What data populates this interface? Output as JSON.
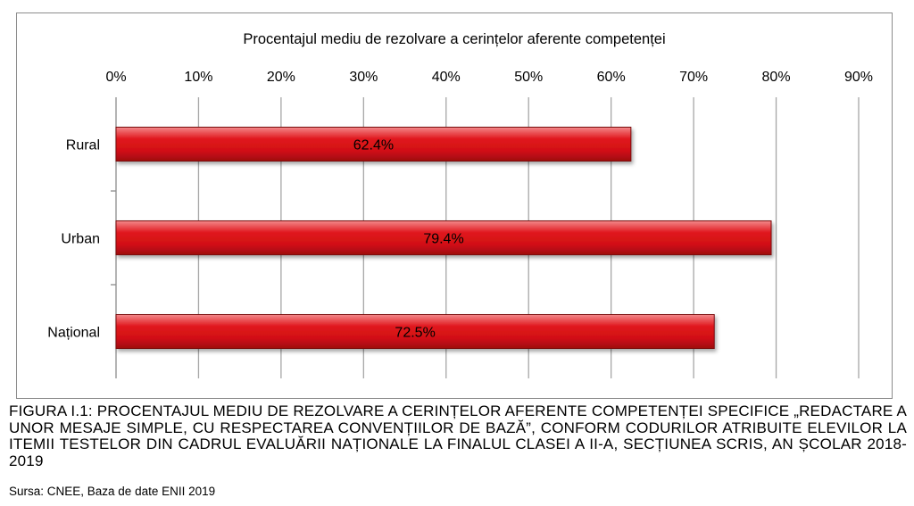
{
  "chart_data": {
    "type": "bar",
    "orientation": "horizontal",
    "title": "Procentajul mediu de rezolvare a cerințelor aferente competenței",
    "categories": [
      "Rural",
      "Urban",
      "Național"
    ],
    "values": [
      62.4,
      79.4,
      72.5
    ],
    "value_labels": [
      "62.4%",
      "79.4%",
      "72.5%"
    ],
    "xlim": [
      0,
      90
    ],
    "x_ticks": [
      0,
      10,
      20,
      30,
      40,
      50,
      60,
      70,
      80,
      90
    ],
    "x_tick_labels": [
      "0%",
      "10%",
      "20%",
      "30%",
      "40%",
      "50%",
      "60%",
      "70%",
      "80%",
      "90%"
    ],
    "axis_position": "top",
    "grid": true,
    "legend": "none",
    "bar_color": "#e0161c",
    "bar_edge_color": "#7a0d10",
    "grid_color": "#a6a6a6"
  },
  "caption": "FIGURA I.1: PROCENTAJUL MEDIU DE REZOLVARE A CERINȚELOR AFERENTE COMPETENȚEI SPECIFICE „REDACTARE A UNOR MESAJE SIMPLE, CU RESPECTAREA CONVENȚIILOR DE BAZĂ”, CONFORM CODURILOR ATRIBUITE ELEVILOR LA ITEMII TESTELOR DIN CADRUL EVALUĂRII NAȚIONALE LA FINALUL CLASEI A II-A, SECȚIUNEA SCRIS, AN ȘCOLAR 2018-2019",
  "source": "Sursa: CNEE, Baza de date ENII 2019"
}
